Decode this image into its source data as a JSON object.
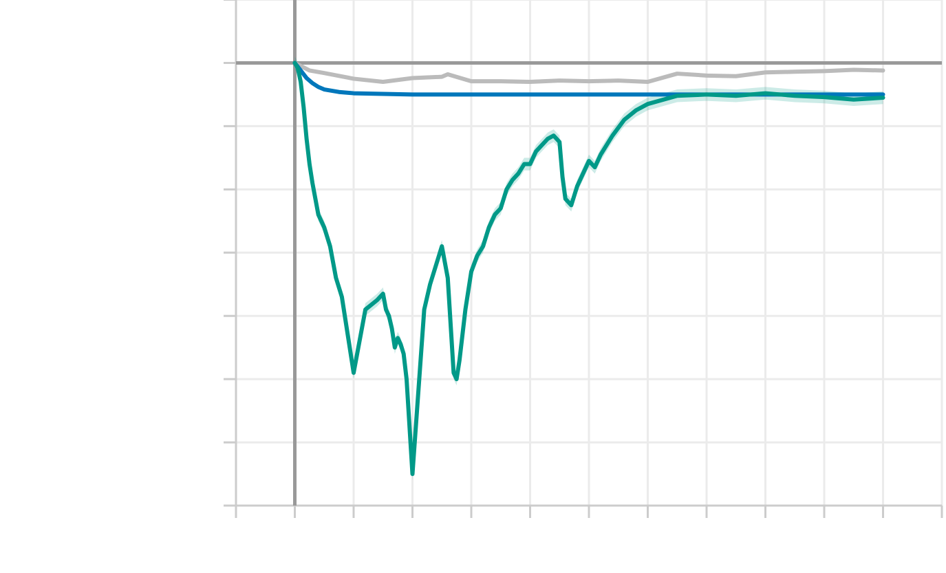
{
  "chart_data": {
    "type": "line",
    "title": "",
    "xlabel": "",
    "ylabel": "",
    "xlim": [
      -1,
      11
    ],
    "ylim": [
      -7,
      1
    ],
    "x_gridlines": [
      -1,
      0,
      1,
      2,
      3,
      4,
      5,
      6,
      7,
      8,
      9,
      10,
      11
    ],
    "y_gridlines": [
      -7,
      -6,
      -5,
      -4,
      -3,
      -2,
      -1,
      0,
      1
    ],
    "zero_lines": {
      "x": 0,
      "y": 0
    },
    "grid": true,
    "tick_labels_visible": false,
    "legend": "none",
    "series": [
      {
        "color": "#bbbbbb",
        "x": [
          0,
          0.25,
          0.5,
          1,
          1.5,
          2,
          2.5,
          2.6,
          3,
          3.5,
          4,
          4.5,
          5,
          5.5,
          6,
          6.5,
          7,
          7.5,
          8,
          8.5,
          9,
          9.5,
          10
        ],
        "y": [
          0,
          -0.12,
          -0.16,
          -0.25,
          -0.3,
          -0.24,
          -0.22,
          -0.18,
          -0.29,
          -0.29,
          -0.3,
          -0.28,
          -0.29,
          -0.28,
          -0.3,
          -0.17,
          -0.2,
          -0.21,
          -0.15,
          -0.14,
          -0.13,
          -0.11,
          -0.12
        ]
      },
      {
        "color": "#0077bb",
        "x": [
          0,
          0.1,
          0.2,
          0.3,
          0.4,
          0.5,
          0.75,
          1,
          1.5,
          2,
          3,
          4,
          5,
          6,
          7,
          8,
          9,
          10
        ],
        "y": [
          0,
          -0.12,
          -0.24,
          -0.32,
          -0.38,
          -0.42,
          -0.46,
          -0.48,
          -0.49,
          -0.5,
          -0.5,
          -0.5,
          -0.5,
          -0.5,
          -0.5,
          -0.5,
          -0.5,
          -0.5
        ]
      },
      {
        "color": "#009988",
        "band_color": "#009988",
        "x": [
          0,
          0.05,
          0.1,
          0.15,
          0.2,
          0.25,
          0.3,
          0.4,
          0.5,
          0.6,
          0.7,
          0.8,
          0.9,
          1.0,
          1.2,
          1.4,
          1.5,
          1.55,
          1.6,
          1.65,
          1.7,
          1.75,
          1.8,
          1.85,
          1.9,
          2.0,
          2.2,
          2.3,
          2.4,
          2.5,
          2.6,
          2.7,
          2.75,
          2.8,
          2.85,
          2.9,
          3.0,
          3.1,
          3.2,
          3.3,
          3.4,
          3.5,
          3.6,
          3.7,
          3.8,
          3.9,
          4.0,
          4.1,
          4.2,
          4.3,
          4.4,
          4.5,
          4.55,
          4.6,
          4.7,
          4.8,
          5.0,
          5.1,
          5.2,
          5.4,
          5.6,
          5.8,
          6.0,
          6.5,
          7.0,
          7.5,
          8.0,
          8.5,
          9.0,
          9.5,
          10.0
        ],
        "y": [
          0,
          -0.08,
          -0.3,
          -0.7,
          -1.2,
          -1.6,
          -1.9,
          -2.4,
          -2.6,
          -2.9,
          -3.4,
          -3.7,
          -4.3,
          -4.9,
          -3.9,
          -3.75,
          -3.65,
          -3.9,
          -4.0,
          -4.2,
          -4.5,
          -4.35,
          -4.45,
          -4.6,
          -5.0,
          -6.5,
          -3.9,
          -3.5,
          -3.2,
          -2.9,
          -3.4,
          -4.9,
          -5.0,
          -4.7,
          -4.3,
          -3.9,
          -3.3,
          -3.05,
          -2.9,
          -2.6,
          -2.4,
          -2.3,
          -2.0,
          -1.85,
          -1.75,
          -1.6,
          -1.6,
          -1.4,
          -1.3,
          -1.2,
          -1.15,
          -1.25,
          -1.8,
          -2.15,
          -2.25,
          -1.95,
          -1.55,
          -1.65,
          -1.45,
          -1.15,
          -0.9,
          -0.75,
          -0.65,
          -0.52,
          -0.5,
          -0.52,
          -0.48,
          -0.52,
          -0.54,
          -0.58,
          -0.55
        ],
        "band_halfwidth": 0.1
      }
    ]
  }
}
